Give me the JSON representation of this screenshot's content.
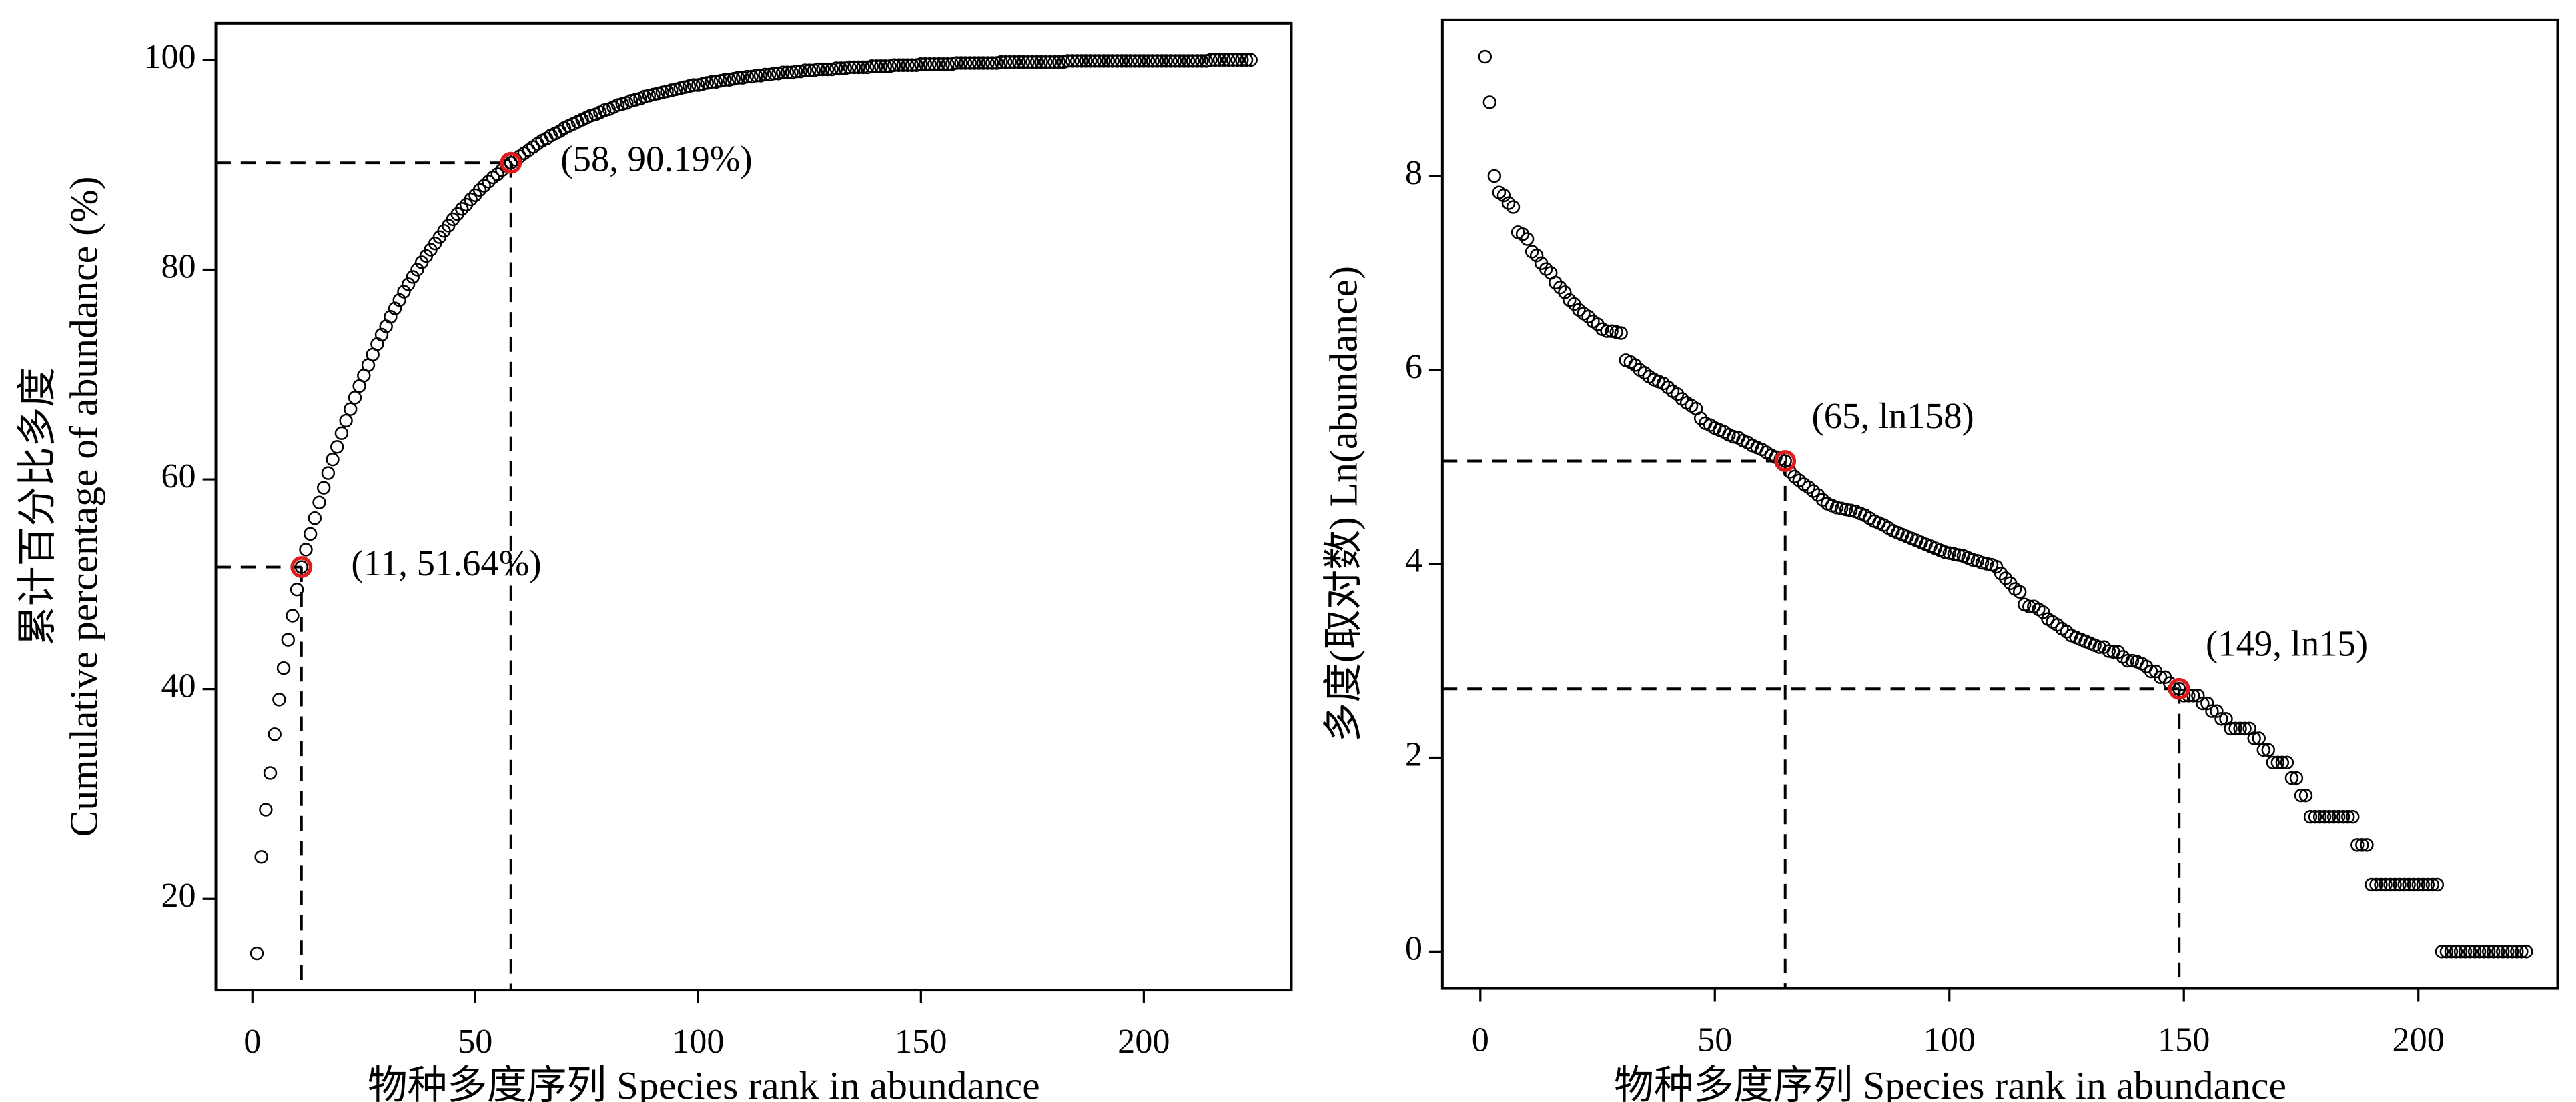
{
  "chart_data": [
    {
      "type": "scatter",
      "xlabel": "物种多度序列 Species rank in abundance",
      "ylabel": [
        "累计百分比多度",
        "Cumulative percentage of abundance (%)"
      ],
      "xlim": [
        -8.2,
        233.1
      ],
      "ylim": [
        11.3,
        103.5
      ],
      "xticks": [
        0,
        50,
        100,
        150,
        200
      ],
      "yticks": [
        20,
        40,
        60,
        80,
        100
      ],
      "marker_color": "#000000",
      "highlight_color": "#e01b1b",
      "x": [
        1,
        2,
        3,
        4,
        5,
        6,
        7,
        8,
        9,
        10,
        11,
        12,
        13,
        14,
        15,
        16,
        17,
        18,
        19,
        20,
        21,
        22,
        23,
        24,
        25,
        26,
        27,
        28,
        29,
        30,
        31,
        32,
        33,
        34,
        35,
        36,
        37,
        38,
        39,
        40,
        41,
        42,
        43,
        44,
        45,
        46,
        47,
        48,
        49,
        50,
        51,
        52,
        53,
        54,
        55,
        56,
        57,
        58,
        59,
        60,
        61,
        62,
        63,
        64,
        65,
        66,
        67,
        68,
        69,
        70,
        71,
        72,
        73,
        74,
        75,
        76,
        77,
        78,
        79,
        80,
        81,
        82,
        83,
        84,
        85,
        86,
        87,
        88,
        89,
        90,
        91,
        92,
        93,
        94,
        95,
        96,
        97,
        98,
        99,
        100,
        101,
        102,
        103,
        104,
        105,
        106,
        107,
        108,
        109,
        110,
        111,
        112,
        113,
        114,
        115,
        116,
        117,
        118,
        119,
        120,
        121,
        122,
        123,
        124,
        125,
        126,
        127,
        128,
        129,
        130,
        131,
        132,
        133,
        134,
        135,
        136,
        137,
        138,
        139,
        140,
        141,
        142,
        143,
        144,
        145,
        146,
        147,
        148,
        149,
        150,
        151,
        152,
        153,
        154,
        155,
        156,
        157,
        158,
        159,
        160,
        161,
        162,
        163,
        164,
        165,
        166,
        167,
        168,
        169,
        170,
        171,
        172,
        173,
        174,
        175,
        176,
        177,
        178,
        179,
        180,
        181,
        182,
        183,
        184,
        185,
        186,
        187,
        188,
        189,
        190,
        191,
        192,
        193,
        194,
        195,
        196,
        197,
        198,
        199,
        200,
        201,
        202,
        203,
        204,
        205,
        206,
        207,
        208,
        209,
        210,
        211,
        212,
        213,
        214,
        215,
        216,
        217,
        218,
        219,
        220,
        221,
        222,
        223,
        224
      ],
      "values": [
        14.8,
        24,
        28.5,
        32,
        35.7,
        39,
        42,
        44.7,
        47,
        49.5,
        51.64,
        53.3,
        54.8,
        56.3,
        57.8,
        59.2,
        60.6,
        61.9,
        63.1,
        64.4,
        65.6,
        66.7,
        67.8,
        68.9,
        69.9,
        70.9,
        71.9,
        72.9,
        73.8,
        74.6,
        75.5,
        76.3,
        77.1,
        77.9,
        78.6,
        79.3,
        80.0,
        80.7,
        81.3,
        81.9,
        82.5,
        83.1,
        83.7,
        84.2,
        84.8,
        85.3,
        85.8,
        86.2,
        86.7,
        87.1,
        87.6,
        88.0,
        88.4,
        88.8,
        89.1,
        89.5,
        89.9,
        90.19,
        90.5,
        90.8,
        91.1,
        91.4,
        91.7,
        92.0,
        92.3,
        92.5,
        92.8,
        93.0,
        93.2,
        93.5,
        93.7,
        93.9,
        94.1,
        94.3,
        94.5,
        94.7,
        94.8,
        95.0,
        95.2,
        95.3,
        95.5,
        95.7,
        95.8,
        95.9,
        96.1,
        96.2,
        96.3,
        96.5,
        96.6,
        96.7,
        96.8,
        96.9,
        97.0,
        97.1,
        97.2,
        97.3,
        97.4,
        97.5,
        97.6,
        97.6,
        97.7,
        97.8,
        97.9,
        97.9,
        98.0,
        98.1,
        98.1,
        98.2,
        98.3,
        98.3,
        98.4,
        98.4,
        98.5,
        98.5,
        98.6,
        98.6,
        98.7,
        98.7,
        98.8,
        98.8,
        98.8,
        98.9,
        98.9,
        99.0,
        99.0,
        99.0,
        99.1,
        99.1,
        99.1,
        99.1,
        99.2,
        99.2,
        99.2,
        99.3,
        99.3,
        99.3,
        99.3,
        99.3,
        99.4,
        99.4,
        99.4,
        99.4,
        99.4,
        99.5,
        99.5,
        99.5,
        99.5,
        99.5,
        99.5,
        99.6,
        99.6,
        99.6,
        99.6,
        99.6,
        99.6,
        99.6,
        99.6,
        99.7,
        99.7,
        99.7,
        99.7,
        99.7,
        99.7,
        99.7,
        99.7,
        99.7,
        99.7,
        99.8,
        99.8,
        99.8,
        99.8,
        99.8,
        99.8,
        99.8,
        99.8,
        99.8,
        99.8,
        99.8,
        99.8,
        99.8,
        99.8,
        99.8,
        99.9,
        99.9,
        99.9,
        99.9,
        99.9,
        99.9,
        99.9,
        99.9,
        99.9,
        99.9,
        99.9,
        99.9,
        99.9,
        99.9,
        99.9,
        99.9,
        99.9,
        99.9,
        99.9,
        99.9,
        99.9,
        99.9,
        99.9,
        99.9,
        99.9,
        99.9,
        99.9,
        99.9,
        99.9,
        99.9,
        99.9,
        99.9,
        100,
        100,
        100,
        100,
        100,
        100,
        100,
        100,
        100,
        100
      ],
      "annotations": [
        {
          "x": 11,
          "y": 51.64,
          "label": "(11, 51.64%)"
        },
        {
          "x": 58,
          "y": 90.19,
          "label": "(58, 90.19%)"
        }
      ]
    },
    {
      "type": "scatter",
      "xlabel": "物种多度序列 Species rank in abundance",
      "ylabel": [
        "多度(取对数) Ln(abundance)"
      ],
      "xlim": [
        -8.1,
        229.7
      ],
      "ylim": [
        -0.38,
        9.61
      ],
      "xticks": [
        0,
        50,
        100,
        150,
        200
      ],
      "yticks": [
        0,
        2,
        4,
        6,
        8
      ],
      "marker_color": "#000000",
      "highlight_color": "#e01b1b",
      "x": [
        1,
        2,
        3,
        4,
        5,
        6,
        7,
        8,
        9,
        10,
        11,
        12,
        13,
        14,
        15,
        16,
        17,
        18,
        19,
        20,
        21,
        22,
        23,
        24,
        25,
        26,
        27,
        28,
        29,
        30,
        31,
        32,
        33,
        34,
        35,
        36,
        37,
        38,
        39,
        40,
        41,
        42,
        43,
        44,
        45,
        46,
        47,
        48,
        49,
        50,
        51,
        52,
        53,
        54,
        55,
        56,
        57,
        58,
        59,
        60,
        61,
        62,
        63,
        64,
        65,
        66,
        67,
        68,
        69,
        70,
        71,
        72,
        73,
        74,
        75,
        76,
        77,
        78,
        79,
        80,
        81,
        82,
        83,
        84,
        85,
        86,
        87,
        88,
        89,
        90,
        91,
        92,
        93,
        94,
        95,
        96,
        97,
        98,
        99,
        100,
        101,
        102,
        103,
        104,
        105,
        106,
        107,
        108,
        109,
        110,
        111,
        112,
        113,
        114,
        115,
        116,
        117,
        118,
        119,
        120,
        121,
        122,
        123,
        124,
        125,
        126,
        127,
        128,
        129,
        130,
        131,
        132,
        133,
        134,
        135,
        136,
        137,
        138,
        139,
        140,
        141,
        142,
        143,
        144,
        145,
        146,
        147,
        148,
        149,
        150,
        151,
        152,
        153,
        154,
        155,
        156,
        157,
        158,
        159,
        160,
        161,
        162,
        163,
        164,
        165,
        166,
        167,
        168,
        169,
        170,
        171,
        172,
        173,
        174,
        175,
        176,
        177,
        178,
        179,
        180,
        181,
        182,
        183,
        184,
        185,
        186,
        187,
        188,
        189,
        190,
        191,
        192,
        193,
        194,
        195,
        196,
        197,
        198,
        199,
        200,
        201,
        202,
        203,
        204,
        205,
        206,
        207,
        208,
        209,
        210,
        211,
        212,
        213,
        214,
        215,
        216,
        217,
        218,
        219,
        220,
        221,
        222,
        223
      ],
      "values": [
        9.23,
        8.76,
        8.0,
        7.83,
        7.8,
        7.72,
        7.68,
        7.42,
        7.4,
        7.35,
        7.22,
        7.18,
        7.1,
        7.04,
        7.0,
        6.9,
        6.85,
        6.8,
        6.72,
        6.68,
        6.62,
        6.58,
        6.55,
        6.5,
        6.47,
        6.42,
        6.4,
        6.4,
        6.39,
        6.38,
        6.1,
        6.08,
        6.05,
        6.0,
        5.97,
        5.93,
        5.9,
        5.88,
        5.86,
        5.82,
        5.78,
        5.75,
        5.7,
        5.66,
        5.63,
        5.6,
        5.5,
        5.45,
        5.43,
        5.4,
        5.38,
        5.36,
        5.33,
        5.31,
        5.3,
        5.27,
        5.25,
        5.22,
        5.2,
        5.18,
        5.15,
        5.12,
        5.1,
        5.08,
        5.06,
        4.95,
        4.9,
        4.86,
        4.82,
        4.79,
        4.75,
        4.71,
        4.66,
        4.62,
        4.6,
        4.58,
        4.57,
        4.56,
        4.55,
        4.54,
        4.52,
        4.5,
        4.47,
        4.44,
        4.42,
        4.4,
        4.37,
        4.34,
        4.32,
        4.3,
        4.28,
        4.26,
        4.24,
        4.22,
        4.2,
        4.18,
        4.16,
        4.14,
        4.12,
        4.11,
        4.1,
        4.09,
        4.08,
        4.06,
        4.04,
        4.03,
        4.01,
        4.0,
        3.99,
        3.97,
        3.9,
        3.85,
        3.8,
        3.74,
        3.71,
        3.58,
        3.56,
        3.56,
        3.53,
        3.5,
        3.43,
        3.4,
        3.37,
        3.33,
        3.3,
        3.26,
        3.24,
        3.22,
        3.2,
        3.18,
        3.16,
        3.14,
        3.14,
        3.1,
        3.09,
        3.09,
        3.04,
        3.0,
        3.0,
        2.99,
        2.97,
        2.94,
        2.89,
        2.89,
        2.83,
        2.83,
        2.77,
        2.71,
        2.71,
        2.64,
        2.64,
        2.64,
        2.64,
        2.56,
        2.56,
        2.48,
        2.48,
        2.4,
        2.4,
        2.3,
        2.3,
        2.3,
        2.3,
        2.3,
        2.2,
        2.2,
        2.08,
        2.08,
        1.95,
        1.95,
        1.95,
        1.95,
        1.79,
        1.79,
        1.61,
        1.61,
        1.39,
        1.39,
        1.39,
        1.39,
        1.39,
        1.39,
        1.39,
        1.39,
        1.39,
        1.39,
        1.1,
        1.1,
        1.1,
        0.69,
        0.69,
        0.69,
        0.69,
        0.69,
        0.69,
        0.69,
        0.69,
        0.69,
        0.69,
        0.69,
        0.69,
        0.69,
        0.69,
        0.69,
        0,
        0,
        0,
        0,
        0,
        0,
        0,
        0,
        0,
        0,
        0,
        0,
        0,
        0,
        0,
        0,
        0,
        0,
        0
      ],
      "annotations": [
        {
          "x": 65,
          "y": 5.06,
          "label": "(65, ln158)"
        },
        {
          "x": 149,
          "y": 2.71,
          "label": "(149, ln15)"
        }
      ]
    }
  ]
}
